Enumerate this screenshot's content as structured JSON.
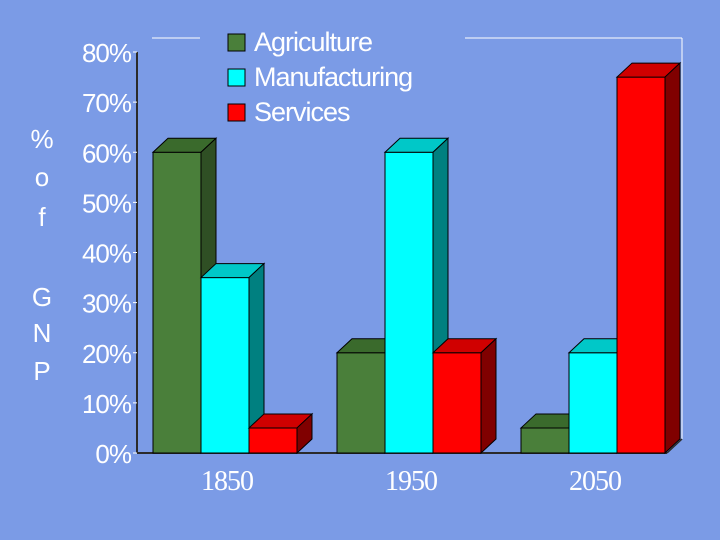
{
  "chart_data": {
    "type": "bar",
    "style": "3d-clustered",
    "title": "",
    "xlabel": "",
    "ylabel": "% of GNP",
    "ylabel_lines": [
      "%",
      "o",
      "f",
      "",
      "G",
      "N",
      "P"
    ],
    "categories": [
      "1850",
      "1950",
      "2050"
    ],
    "series": [
      {
        "name": "Agriculture",
        "values": [
          60,
          20,
          5
        ]
      },
      {
        "name": "Manufacturing",
        "values": [
          35,
          60,
          20
        ]
      },
      {
        "name": "Services",
        "values": [
          5,
          20,
          75
        ]
      }
    ],
    "ylim": [
      0,
      80
    ],
    "yticks": [
      "0%",
      "10%",
      "20%",
      "30%",
      "40%",
      "50%",
      "60%",
      "70%",
      "80%"
    ],
    "legend_position": "top-center",
    "grid": false
  },
  "colors": {
    "background": "#7b9be6",
    "axis": "#ffffff",
    "series": [
      {
        "front": "#4a7f3a",
        "top": "#3a6a2c",
        "side": "#2f4f24"
      },
      {
        "front": "#00ffff",
        "top": "#00c8c8",
        "side": "#008080"
      },
      {
        "front": "#ff0000",
        "top": "#d00000",
        "side": "#800000"
      }
    ]
  }
}
